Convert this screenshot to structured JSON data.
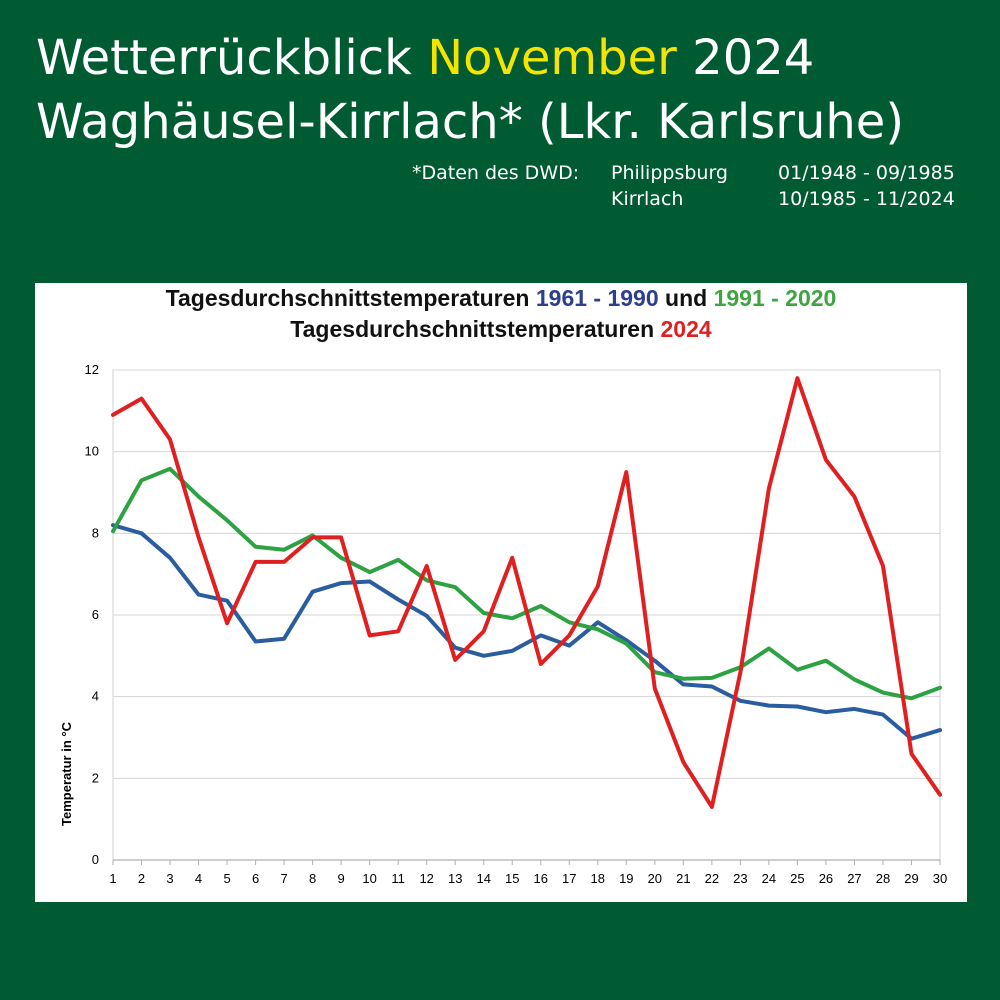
{
  "header": {
    "title_line1_a": "Wetterrückblick",
    "title_line1_month": "November",
    "title_line1_year": "2024",
    "title_line2": "Waghäusel-Kirrlach* (Lkr. Karlsruhe)",
    "source_label": "*Daten des DWD:",
    "source_rows": [
      {
        "station": "Philippsburg",
        "period": "01/1948 - 09/1985"
      },
      {
        "station": "Kirrlach",
        "period": "10/1985 - 11/2024"
      }
    ],
    "highlight_color": "#f5e400",
    "background_color": "#005a32"
  },
  "chart_data": {
    "type": "line",
    "title_line1_prefix": "Tagesdurchschnittstemperaturen",
    "title_line1_range1": "1961 - 1990",
    "title_line1_und": "und",
    "title_line1_range2": "1991 - 2020",
    "title_line2_prefix": "Tagesdurchschnittstemperaturen",
    "title_line2_year": "2024",
    "ylabel": "Temperatur in °C",
    "xlabel": "",
    "ylim": [
      0,
      12
    ],
    "yticks": [
      "0",
      "2",
      "4",
      "6",
      "8",
      "10",
      "12"
    ],
    "x": [
      "1",
      "2",
      "3",
      "4",
      "5",
      "6",
      "7",
      "8",
      "9",
      "10",
      "11",
      "12",
      "13",
      "14",
      "15",
      "16",
      "17",
      "18",
      "19",
      "20",
      "21",
      "22",
      "23",
      "24",
      "25",
      "26",
      "27",
      "28",
      "29",
      "30"
    ],
    "grid": true,
    "series": [
      {
        "key": "1961-1990",
        "color": "#2a5d9f",
        "values": [
          8.2,
          8.0,
          7.4,
          6.5,
          6.35,
          5.35,
          5.42,
          6.57,
          6.78,
          6.82,
          6.38,
          5.98,
          5.2,
          5.0,
          5.12,
          5.5,
          5.25,
          5.82,
          5.38,
          4.88,
          4.3,
          4.25,
          3.9,
          3.78,
          3.76,
          3.62,
          3.7,
          3.56,
          2.97,
          3.18
        ]
      },
      {
        "key": "1991-2020",
        "color": "#2ca243",
        "values": [
          8.05,
          9.3,
          9.58,
          8.9,
          8.32,
          7.67,
          7.6,
          7.95,
          7.4,
          7.05,
          7.35,
          6.85,
          6.68,
          6.05,
          5.92,
          6.22,
          5.82,
          5.65,
          5.3,
          4.6,
          4.44,
          4.46,
          4.72,
          5.18,
          4.66,
          4.88,
          4.42,
          4.1,
          3.96,
          4.22
        ]
      },
      {
        "key": "2024",
        "color": "#e02020",
        "values": [
          10.9,
          11.3,
          10.3,
          7.9,
          5.8,
          7.3,
          7.3,
          7.9,
          7.9,
          5.5,
          5.6,
          7.2,
          4.9,
          5.6,
          7.4,
          4.8,
          5.5,
          6.7,
          9.5,
          4.2,
          2.4,
          1.3,
          4.6,
          9.1,
          11.8,
          9.8,
          8.9,
          7.2,
          2.6,
          1.6
        ]
      }
    ]
  }
}
